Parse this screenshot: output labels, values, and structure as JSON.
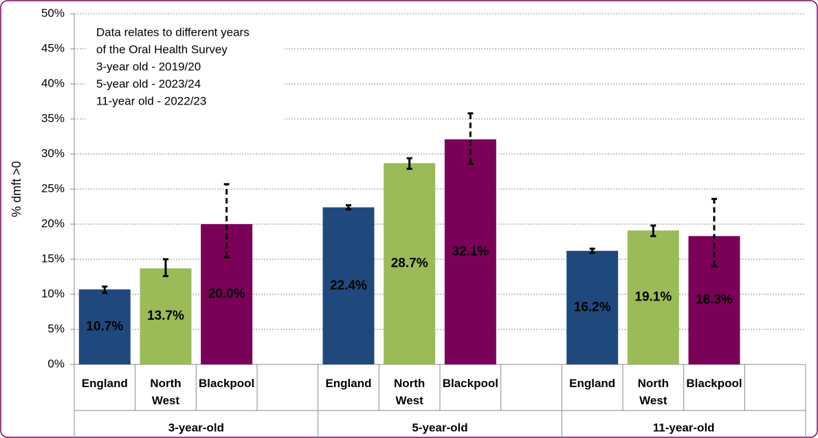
{
  "chart_data": {
    "type": "bar",
    "y_label": "% dmft >0",
    "annotation": [
      "Data relates to different years",
      "of the Oral Health Survey",
      "3-year old - 2019/20",
      "5-year old - 2023/24",
      "11-year old - 2022/23"
    ],
    "categories": [
      "3-year-old",
      "5-year-old",
      "11-year-old"
    ],
    "series": [
      {
        "name": "England",
        "color": "#1f497d",
        "label_color": "#ffffff",
        "error_style": "solid",
        "values": [
          10.7,
          22.4,
          16.2
        ],
        "value_labels": [
          "10.7%",
          "22.4%",
          "16.2%"
        ],
        "ci_lower": [
          10.2,
          22.1,
          15.9
        ],
        "ci_upper": [
          11.1,
          22.7,
          16.5
        ]
      },
      {
        "name": "North West",
        "color": "#9bbb59",
        "label_color": "#000000",
        "error_style": "solid",
        "values": [
          13.7,
          28.7,
          19.1
        ],
        "value_labels": [
          "13.7%",
          "28.7%",
          "19.1%"
        ],
        "ci_lower": [
          12.6,
          27.9,
          18.3
        ],
        "ci_upper": [
          15.0,
          29.4,
          19.8
        ]
      },
      {
        "name": "Blackpool",
        "color": "#7b0058",
        "label_color": "#ffffff",
        "error_style": "dashed",
        "values": [
          20.0,
          32.1,
          18.3
        ],
        "value_labels": [
          "20.0%",
          "32.1%",
          "18.3%"
        ],
        "ci_lower": [
          15.3,
          28.6,
          14.0
        ],
        "ci_upper": [
          25.7,
          35.8,
          23.6
        ]
      }
    ],
    "ylim": [
      0,
      50
    ],
    "yticks": [
      {
        "value": 0,
        "label": "0%"
      },
      {
        "value": 5,
        "label": "5%"
      },
      {
        "value": 10,
        "label": "10%"
      },
      {
        "value": 15,
        "label": "15%"
      },
      {
        "value": 20,
        "label": "20%"
      },
      {
        "value": 25,
        "label": "25%"
      },
      {
        "value": 30,
        "label": "30%"
      },
      {
        "value": 35,
        "label": "35%"
      },
      {
        "value": 40,
        "label": "40%"
      },
      {
        "value": 45,
        "label": "45%"
      },
      {
        "value": 50,
        "label": "50%"
      }
    ],
    "grid": true
  }
}
